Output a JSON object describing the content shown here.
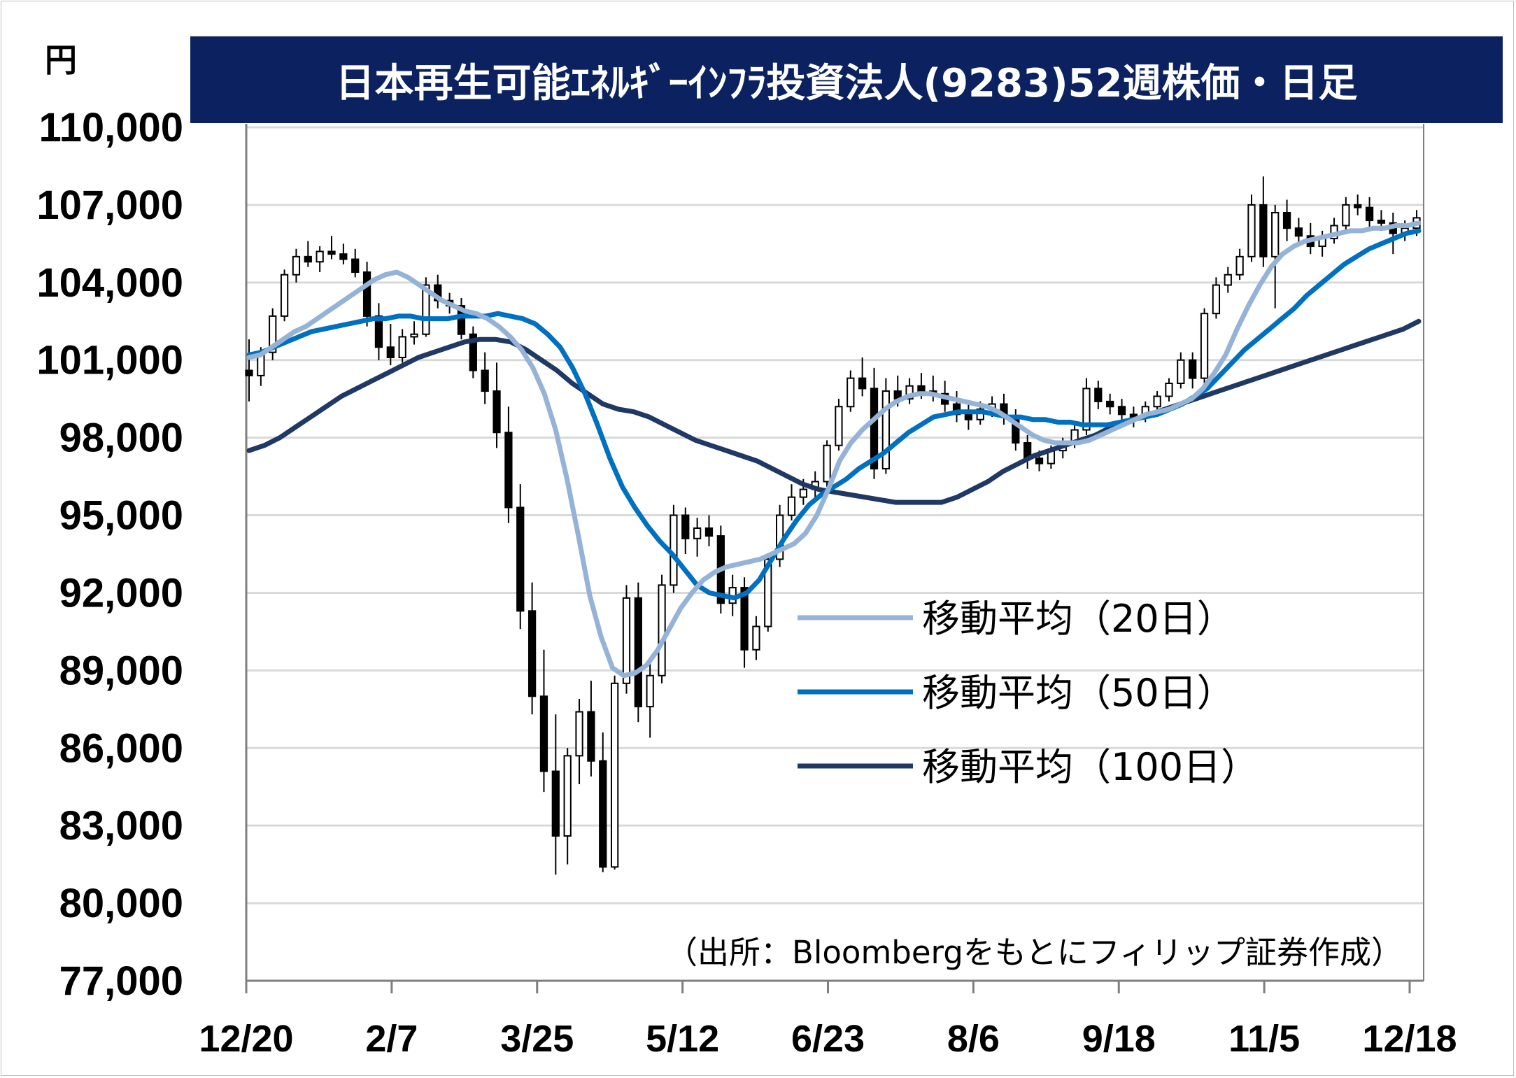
{
  "title": "日本再生可能ｴﾈﾙｷﾞｰｲﾝﾌﾗ投資法人(9283)52週株価・日足",
  "unit": "円",
  "source": "（出所：Bloombergをもとにフィリップ証券作成）",
  "colors": {
    "banner": "#0c2260",
    "ma20": "#95b3d7",
    "ma50": "#0070c0",
    "ma100": "#1f3864",
    "candle": "#000000",
    "grid": "#d9d9d9",
    "axis": "#7f7f7f"
  },
  "chart_data": {
    "type": "candlestick",
    "ylim": [
      77000,
      110000
    ],
    "yticks": [
      "110,000",
      "107,000",
      "104,000",
      "101,000",
      "98,000",
      "95,000",
      "92,000",
      "89,000",
      "86,000",
      "83,000",
      "80,000",
      "77,000"
    ],
    "yticks_values": [
      110000,
      107000,
      104000,
      101000,
      98000,
      95000,
      92000,
      89000,
      86000,
      83000,
      80000,
      77000
    ],
    "xticks": [
      "12/20",
      "2/7",
      "3/25",
      "5/12",
      "6/23",
      "8/6",
      "9/18",
      "11/5",
      "12/18"
    ],
    "grid": "horizontal",
    "legend_position": "center-right",
    "series": [
      {
        "name": "移動平均（20日）",
        "color": "#95b3d7",
        "values": [
          101100,
          101200,
          101500,
          101800,
          102100,
          102300,
          102600,
          102900,
          103200,
          103500,
          103800,
          104100,
          104300,
          104400,
          104200,
          103900,
          103600,
          103300,
          103100,
          102900,
          102800,
          102600,
          102300,
          101900,
          101400,
          100700,
          99700,
          98300,
          96400,
          94200,
          91900,
          90300,
          89100,
          88800,
          88900,
          89200,
          89800,
          90600,
          91400,
          92000,
          92500,
          92800,
          93000,
          93100,
          93200,
          93300,
          93500,
          93700,
          93900,
          94300,
          95000,
          96000,
          97100,
          97800,
          98300,
          98700,
          99100,
          99400,
          99600,
          99700,
          99700,
          99600,
          99500,
          99400,
          99300,
          99200,
          99000,
          98700,
          98400,
          98100,
          97900,
          97800,
          97800,
          97800,
          97900,
          98100,
          98300,
          98500,
          98700,
          98900,
          99000,
          99100,
          99300,
          99500,
          99900,
          100500,
          101200,
          102200,
          103100,
          103900,
          104600,
          105100,
          105400,
          105600,
          105700,
          105800,
          105900,
          106000,
          106000,
          106100,
          106100,
          106200,
          106200,
          106300
        ]
      },
      {
        "name": "移動平均（50日）",
        "color": "#0070c0",
        "values": [
          101200,
          101300,
          101500,
          101700,
          101900,
          102100,
          102200,
          102300,
          102400,
          102500,
          102600,
          102600,
          102700,
          102700,
          102600,
          102600,
          102600,
          102700,
          102700,
          102700,
          102800,
          102700,
          102600,
          102400,
          102000,
          101500,
          100700,
          99700,
          98500,
          97200,
          96100,
          95300,
          94600,
          94000,
          93500,
          92900,
          92300,
          92000,
          91900,
          91800,
          92000,
          92500,
          93300,
          94100,
          94800,
          95400,
          95800,
          96100,
          96400,
          96800,
          97100,
          97400,
          97800,
          98200,
          98500,
          98800,
          98900,
          99000,
          99000,
          99000,
          98900,
          98800,
          98800,
          98700,
          98700,
          98600,
          98600,
          98500,
          98500,
          98500,
          98600,
          98700,
          98800,
          98900,
          99100,
          99300,
          99600,
          99900,
          100400,
          100900,
          101400,
          101800,
          102200,
          102600,
          103000,
          103500,
          103900,
          104300,
          104700,
          105000,
          105300,
          105500,
          105700,
          105900,
          106000
        ]
      },
      {
        "name": "移動平均（100日）",
        "color": "#1f3864",
        "values": [
          97500,
          97700,
          98000,
          98400,
          98800,
          99200,
          99600,
          99900,
          100200,
          100500,
          100800,
          101100,
          101300,
          101500,
          101700,
          101800,
          101800,
          101700,
          101400,
          101000,
          100600,
          100100,
          99700,
          99300,
          99100,
          99000,
          98800,
          98500,
          98200,
          97900,
          97700,
          97500,
          97300,
          97100,
          96800,
          96500,
          96200,
          96000,
          95900,
          95800,
          95700,
          95600,
          95500,
          95500,
          95500,
          95500,
          95700,
          96000,
          96300,
          96700,
          97000,
          97300,
          97500,
          97700,
          97900,
          98100,
          98400,
          98600,
          98800,
          99000,
          99200,
          99400,
          99600,
          99800,
          100000,
          100200,
          100400,
          100600,
          100800,
          101000,
          101200,
          101400,
          101600,
          101800,
          102000,
          102200,
          102500
        ]
      }
    ],
    "candles": [
      {
        "o": 100600,
        "h": 101800,
        "l": 99400,
        "c": 100400
      },
      {
        "o": 100400,
        "h": 101500,
        "l": 100000,
        "c": 101300
      },
      {
        "o": 101300,
        "h": 103000,
        "l": 101000,
        "c": 102700
      },
      {
        "o": 102700,
        "h": 104500,
        "l": 102500,
        "c": 104300
      },
      {
        "o": 104300,
        "h": 105300,
        "l": 104000,
        "c": 105000
      },
      {
        "o": 105000,
        "h": 105600,
        "l": 104600,
        "c": 104800
      },
      {
        "o": 104800,
        "h": 105400,
        "l": 104400,
        "c": 105200
      },
      {
        "o": 105200,
        "h": 105800,
        "l": 104900,
        "c": 105100
      },
      {
        "o": 105100,
        "h": 105500,
        "l": 104700,
        "c": 104900
      },
      {
        "o": 104900,
        "h": 105300,
        "l": 104200,
        "c": 104400
      },
      {
        "o": 104400,
        "h": 104800,
        "l": 102300,
        "c": 102700
      },
      {
        "o": 102700,
        "h": 103200,
        "l": 101000,
        "c": 101500
      },
      {
        "o": 101500,
        "h": 102400,
        "l": 100800,
        "c": 101100
      },
      {
        "o": 101100,
        "h": 102200,
        "l": 100900,
        "c": 101900
      },
      {
        "o": 101900,
        "h": 102500,
        "l": 101600,
        "c": 102000
      },
      {
        "o": 102000,
        "h": 104200,
        "l": 101900,
        "c": 103900
      },
      {
        "o": 103900,
        "h": 104300,
        "l": 103000,
        "c": 103300
      },
      {
        "o": 103300,
        "h": 103600,
        "l": 102800,
        "c": 103100
      },
      {
        "o": 103100,
        "h": 103400,
        "l": 101800,
        "c": 102000
      },
      {
        "o": 102000,
        "h": 102300,
        "l": 100300,
        "c": 100600
      },
      {
        "o": 100600,
        "h": 101300,
        "l": 99300,
        "c": 99800
      },
      {
        "o": 99800,
        "h": 100900,
        "l": 97600,
        "c": 98200
      },
      {
        "o": 98200,
        "h": 99200,
        "l": 94700,
        "c": 95300
      },
      {
        "o": 95300,
        "h": 96200,
        "l": 90600,
        "c": 91300
      },
      {
        "o": 91300,
        "h": 92400,
        "l": 87300,
        "c": 88000
      },
      {
        "o": 88000,
        "h": 89800,
        "l": 84300,
        "c": 85100
      },
      {
        "o": 85100,
        "h": 87300,
        "l": 81100,
        "c": 82600
      },
      {
        "o": 82600,
        "h": 86000,
        "l": 81500,
        "c": 85700
      },
      {
        "o": 85700,
        "h": 87900,
        "l": 84600,
        "c": 87400
      },
      {
        "o": 87400,
        "h": 88600,
        "l": 84900,
        "c": 85500
      },
      {
        "o": 85500,
        "h": 86600,
        "l": 81200,
        "c": 81400
      },
      {
        "o": 81400,
        "h": 88800,
        "l": 81300,
        "c": 88500
      },
      {
        "o": 88500,
        "h": 92300,
        "l": 88100,
        "c": 91800
      },
      {
        "o": 91800,
        "h": 92400,
        "l": 87000,
        "c": 87600
      },
      {
        "o": 87600,
        "h": 89300,
        "l": 86400,
        "c": 88800
      },
      {
        "o": 88800,
        "h": 92700,
        "l": 88500,
        "c": 92300
      },
      {
        "o": 92300,
        "h": 95400,
        "l": 92000,
        "c": 95000
      },
      {
        "o": 95000,
        "h": 95300,
        "l": 93500,
        "c": 94100
      },
      {
        "o": 94100,
        "h": 94900,
        "l": 93400,
        "c": 94500
      },
      {
        "o": 94500,
        "h": 95000,
        "l": 93800,
        "c": 94200
      },
      {
        "o": 94200,
        "h": 94600,
        "l": 91200,
        "c": 91600
      },
      {
        "o": 91600,
        "h": 92700,
        "l": 91100,
        "c": 92200
      },
      {
        "o": 92200,
        "h": 92600,
        "l": 89100,
        "c": 89800
      },
      {
        "o": 89800,
        "h": 91100,
        "l": 89400,
        "c": 90700
      },
      {
        "o": 90700,
        "h": 93500,
        "l": 90500,
        "c": 93300
      },
      {
        "o": 93300,
        "h": 95400,
        "l": 93000,
        "c": 95000
      },
      {
        "o": 95000,
        "h": 96200,
        "l": 94800,
        "c": 95700
      },
      {
        "o": 95700,
        "h": 96400,
        "l": 95400,
        "c": 96000
      },
      {
        "o": 96000,
        "h": 96700,
        "l": 95700,
        "c": 96300
      },
      {
        "o": 96300,
        "h": 97900,
        "l": 96100,
        "c": 97700
      },
      {
        "o": 97700,
        "h": 99500,
        "l": 97500,
        "c": 99200
      },
      {
        "o": 99200,
        "h": 100600,
        "l": 99000,
        "c": 100300
      },
      {
        "o": 100300,
        "h": 101100,
        "l": 99600,
        "c": 99900
      },
      {
        "o": 99900,
        "h": 100700,
        "l": 96400,
        "c": 96800
      },
      {
        "o": 96800,
        "h": 100300,
        "l": 96600,
        "c": 99800
      },
      {
        "o": 99800,
        "h": 100400,
        "l": 99200,
        "c": 99500
      },
      {
        "o": 99500,
        "h": 100300,
        "l": 99300,
        "c": 100000
      },
      {
        "o": 100000,
        "h": 100500,
        "l": 99500,
        "c": 99800
      },
      {
        "o": 99800,
        "h": 100400,
        "l": 99400,
        "c": 99700
      },
      {
        "o": 99700,
        "h": 100200,
        "l": 99000,
        "c": 99300
      },
      {
        "o": 99300,
        "h": 99800,
        "l": 98600,
        "c": 98900
      },
      {
        "o": 98900,
        "h": 99300,
        "l": 98300,
        "c": 98700
      },
      {
        "o": 98700,
        "h": 99400,
        "l": 98500,
        "c": 99100
      },
      {
        "o": 99100,
        "h": 99600,
        "l": 98800,
        "c": 99300
      },
      {
        "o": 99300,
        "h": 99700,
        "l": 98500,
        "c": 98800
      },
      {
        "o": 98800,
        "h": 99100,
        "l": 97500,
        "c": 97800
      },
      {
        "o": 97800,
        "h": 98100,
        "l": 96800,
        "c": 97200
      },
      {
        "o": 97200,
        "h": 97500,
        "l": 96700,
        "c": 97000
      },
      {
        "o": 97000,
        "h": 97700,
        "l": 96800,
        "c": 97500
      },
      {
        "o": 97500,
        "h": 98000,
        "l": 97200,
        "c": 97800
      },
      {
        "o": 97800,
        "h": 98500,
        "l": 97600,
        "c": 98300
      },
      {
        "o": 98300,
        "h": 100300,
        "l": 98100,
        "c": 99900
      },
      {
        "o": 99900,
        "h": 100200,
        "l": 99100,
        "c": 99400
      },
      {
        "o": 99400,
        "h": 99700,
        "l": 98900,
        "c": 99200
      },
      {
        "o": 99200,
        "h": 99500,
        "l": 98600,
        "c": 98900
      },
      {
        "o": 98900,
        "h": 99200,
        "l": 98400,
        "c": 98800
      },
      {
        "o": 98800,
        "h": 99400,
        "l": 98600,
        "c": 99200
      },
      {
        "o": 99200,
        "h": 99800,
        "l": 99000,
        "c": 99600
      },
      {
        "o": 99600,
        "h": 100300,
        "l": 99400,
        "c": 100100
      },
      {
        "o": 100100,
        "h": 101300,
        "l": 99900,
        "c": 101000
      },
      {
        "o": 101000,
        "h": 101300,
        "l": 99900,
        "c": 100300
      },
      {
        "o": 100300,
        "h": 103000,
        "l": 100100,
        "c": 102800
      },
      {
        "o": 102800,
        "h": 104200,
        "l": 102600,
        "c": 103900
      },
      {
        "o": 103900,
        "h": 104600,
        "l": 103600,
        "c": 104300
      },
      {
        "o": 104300,
        "h": 105300,
        "l": 104100,
        "c": 105000
      },
      {
        "o": 105000,
        "h": 107400,
        "l": 104800,
        "c": 107000
      },
      {
        "o": 107000,
        "h": 108100,
        "l": 104600,
        "c": 105000
      },
      {
        "o": 105000,
        "h": 107000,
        "l": 103000,
        "c": 106700
      },
      {
        "o": 106700,
        "h": 107200,
        "l": 105600,
        "c": 106100
      },
      {
        "o": 106100,
        "h": 106500,
        "l": 105400,
        "c": 105800
      },
      {
        "o": 105800,
        "h": 106300,
        "l": 105100,
        "c": 105400
      },
      {
        "o": 105400,
        "h": 106000,
        "l": 105000,
        "c": 105700
      },
      {
        "o": 105700,
        "h": 106500,
        "l": 105500,
        "c": 106200
      },
      {
        "o": 106200,
        "h": 107300,
        "l": 106000,
        "c": 107000
      },
      {
        "o": 107000,
        "h": 107400,
        "l": 106600,
        "c": 106900
      },
      {
        "o": 106900,
        "h": 107300,
        "l": 106100,
        "c": 106400
      },
      {
        "o": 106400,
        "h": 106800,
        "l": 106000,
        "c": 106300
      },
      {
        "o": 106300,
        "h": 106700,
        "l": 105100,
        "c": 105900
      },
      {
        "o": 105900,
        "h": 106400,
        "l": 105600,
        "c": 106100
      },
      {
        "o": 106100,
        "h": 106800,
        "l": 105800,
        "c": 106500
      }
    ]
  },
  "legend": [
    {
      "label": "移動平均（20日）",
      "color": "#95b3d7"
    },
    {
      "label": "移動平均（50日）",
      "color": "#0070c0"
    },
    {
      "label": "移動平均（100日）",
      "color": "#1f3864"
    }
  ]
}
